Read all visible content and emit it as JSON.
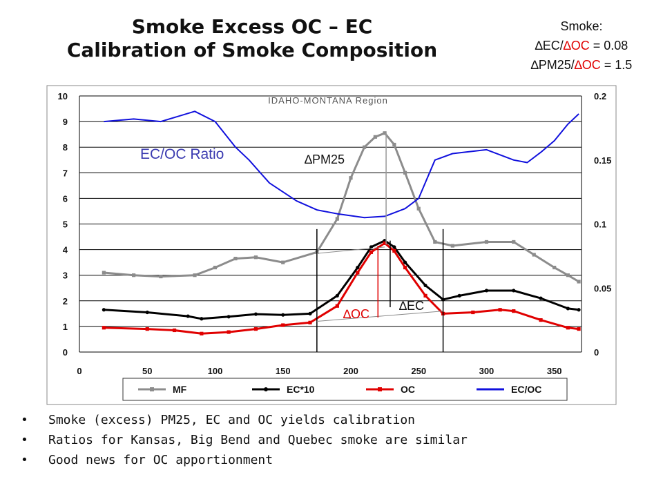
{
  "slide": {
    "title_line1": "Smoke Excess OC – EC",
    "title_line2": "Calibration of Smoke Composition",
    "smoke_heading": "Smoke:",
    "ratio1": {
      "delta1": "∆",
      "num": "EC/",
      "delta2": "∆",
      "den": "OC",
      "val": " = 0.08"
    },
    "ratio2": {
      "delta1": "∆",
      "num": "PM25/",
      "delta2": "∆",
      "den": "OC",
      "val": " = 1.5"
    },
    "bullets": [
      "Smoke (excess) PM25, EC and OC yields calibration",
      "Ratios for Kansas, Big Bend and Quebec smoke are similar",
      "Good news for OC apportionment"
    ]
  },
  "chart_data": {
    "type": "line",
    "title": "IDAHO-MONTANA Region",
    "x_ticks": [
      0,
      50,
      100,
      150,
      200,
      250,
      300,
      350
    ],
    "xlim": [
      0,
      370
    ],
    "ylim": [
      0,
      10
    ],
    "y_ticks": [
      0,
      1,
      2,
      3,
      4,
      5,
      6,
      7,
      8,
      9,
      10
    ],
    "y2lim": [
      0,
      0.2
    ],
    "y2_ticks": [
      "0",
      "0.05",
      "0.1",
      "0.15",
      "0.2"
    ],
    "grid": true,
    "legend_position": "bottom",
    "series": [
      {
        "name": "MF",
        "axis": "left",
        "color": "#8c8c8c",
        "marker": "square",
        "x": [
          18,
          40,
          60,
          85,
          100,
          115,
          130,
          150,
          175,
          190,
          200,
          210,
          218,
          225,
          232,
          240,
          250,
          262,
          275,
          300,
          320,
          335,
          350,
          360,
          368
        ],
        "y": [
          3.1,
          3.0,
          2.95,
          3.0,
          3.3,
          3.65,
          3.7,
          3.5,
          3.9,
          5.2,
          6.8,
          8.0,
          8.4,
          8.55,
          8.1,
          7.0,
          5.6,
          4.3,
          4.15,
          4.3,
          4.3,
          3.8,
          3.3,
          3.0,
          2.75
        ]
      },
      {
        "name": "EC*10",
        "axis": "left",
        "color": "#000000",
        "marker": "circle",
        "x": [
          18,
          50,
          80,
          90,
          110,
          130,
          150,
          170,
          190,
          205,
          215,
          225,
          232,
          240,
          255,
          268,
          280,
          300,
          320,
          340,
          360,
          368
        ],
        "y": [
          1.65,
          1.55,
          1.4,
          1.3,
          1.38,
          1.48,
          1.45,
          1.5,
          2.2,
          3.3,
          4.1,
          4.35,
          4.1,
          3.5,
          2.6,
          2.05,
          2.2,
          2.4,
          2.4,
          2.1,
          1.7,
          1.65
        ]
      },
      {
        "name": "OC",
        "axis": "left",
        "color": "#e00000",
        "marker": "square",
        "x": [
          18,
          50,
          70,
          90,
          110,
          130,
          150,
          170,
          190,
          205,
          215,
          225,
          232,
          240,
          255,
          268,
          290,
          310,
          320,
          340,
          360,
          368
        ],
        "y": [
          0.95,
          0.9,
          0.85,
          0.72,
          0.78,
          0.9,
          1.05,
          1.15,
          1.8,
          3.1,
          3.9,
          4.25,
          3.95,
          3.3,
          2.2,
          1.5,
          1.55,
          1.65,
          1.6,
          1.25,
          0.95,
          0.9
        ]
      },
      {
        "name": "EC/OC",
        "axis": "right",
        "color": "#1010dd",
        "marker": "none",
        "x": [
          18,
          40,
          60,
          85,
          100,
          115,
          125,
          140,
          160,
          175,
          190,
          210,
          225,
          240,
          250,
          262,
          275,
          300,
          320,
          330,
          340,
          350,
          360,
          368
        ],
        "y": [
          0.18,
          0.182,
          0.18,
          0.188,
          0.18,
          0.16,
          0.15,
          0.132,
          0.118,
          0.111,
          0.108,
          0.105,
          0.106,
          0.112,
          0.12,
          0.15,
          0.155,
          0.158,
          0.15,
          0.148,
          0.156,
          0.165,
          0.178,
          0.186
        ]
      }
    ],
    "annotations": [
      {
        "id": "ec_oc_ratio",
        "text": "EC/OC Ratio",
        "color": "#3a3ab0"
      },
      {
        "id": "dpm25",
        "text": "∆PM25",
        "color": "#111111"
      },
      {
        "id": "doc",
        "text": "∆OC",
        "color": "#e00000"
      },
      {
        "id": "dec",
        "text": "∆EC",
        "color": "#111111"
      }
    ],
    "window_x": [
      175,
      268
    ]
  }
}
